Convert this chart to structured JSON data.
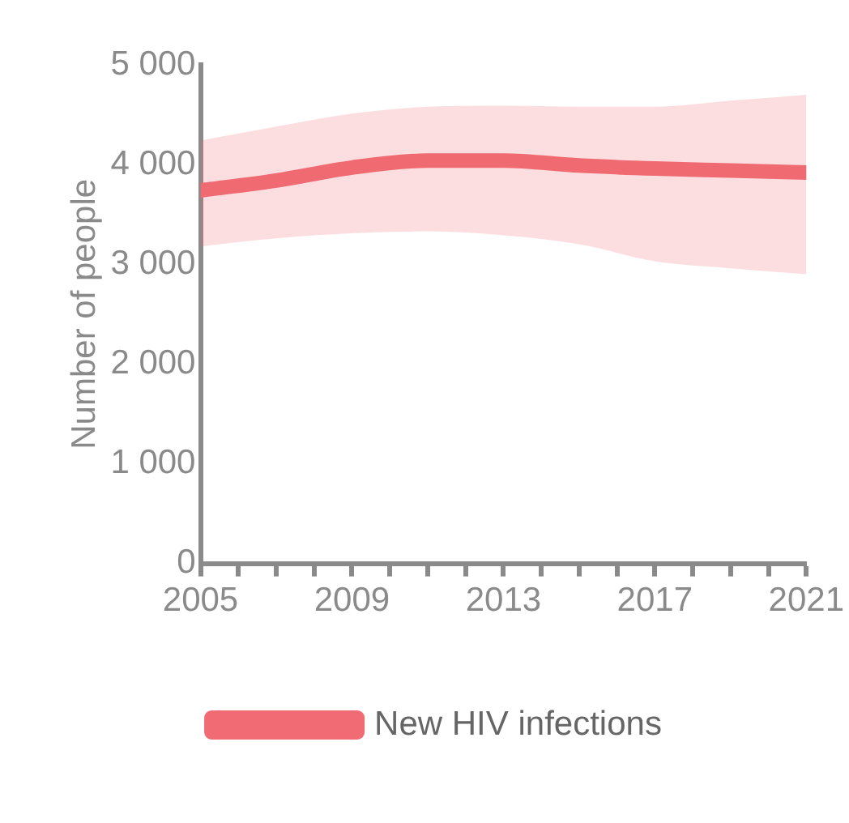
{
  "chart_data": {
    "type": "line",
    "ylabel": "Number of people",
    "x": [
      2005,
      2007,
      2009,
      2011,
      2013,
      2015,
      2017,
      2019,
      2021
    ],
    "series": [
      {
        "name": "New HIV infections",
        "color": "#f06b73",
        "values": [
          3740,
          3840,
          3970,
          4040,
          4040,
          3990,
          3960,
          3940,
          3920
        ],
        "lower": [
          3180,
          3260,
          3310,
          3330,
          3290,
          3200,
          3030,
          2960,
          2900
        ],
        "upper": [
          4240,
          4380,
          4510,
          4580,
          4590,
          4580,
          4580,
          4640,
          4700
        ]
      }
    ],
    "xlim": [
      2005,
      2021
    ],
    "xticks": [
      2005,
      {
        "value": 2006,
        "label": null
      },
      {
        "value": 2007,
        "label": null
      },
      {
        "value": 2008,
        "label": null
      },
      2009,
      {
        "value": 2010,
        "label": null
      },
      {
        "value": 2011,
        "label": null
      },
      {
        "value": 2012,
        "label": null
      },
      2013,
      {
        "value": 2014,
        "label": null
      },
      {
        "value": 2015,
        "label": null
      },
      {
        "value": 2016,
        "label": null
      },
      2017,
      {
        "value": 2018,
        "label": null
      },
      {
        "value": 2019,
        "label": null
      },
      {
        "value": 2020,
        "label": null
      },
      2021
    ],
    "ylim": [
      0,
      5000
    ],
    "yticks": [
      0,
      {
        "value": 1000,
        "label": "1 000"
      },
      {
        "value": 2000,
        "label": "2 000"
      },
      {
        "value": 3000,
        "label": "3 000"
      },
      {
        "value": 4000,
        "label": "4 000"
      },
      {
        "value": 5000,
        "label": "5 000"
      }
    ],
    "grid": false,
    "legend": "bottom",
    "marker": "none",
    "line_style": "solid"
  }
}
